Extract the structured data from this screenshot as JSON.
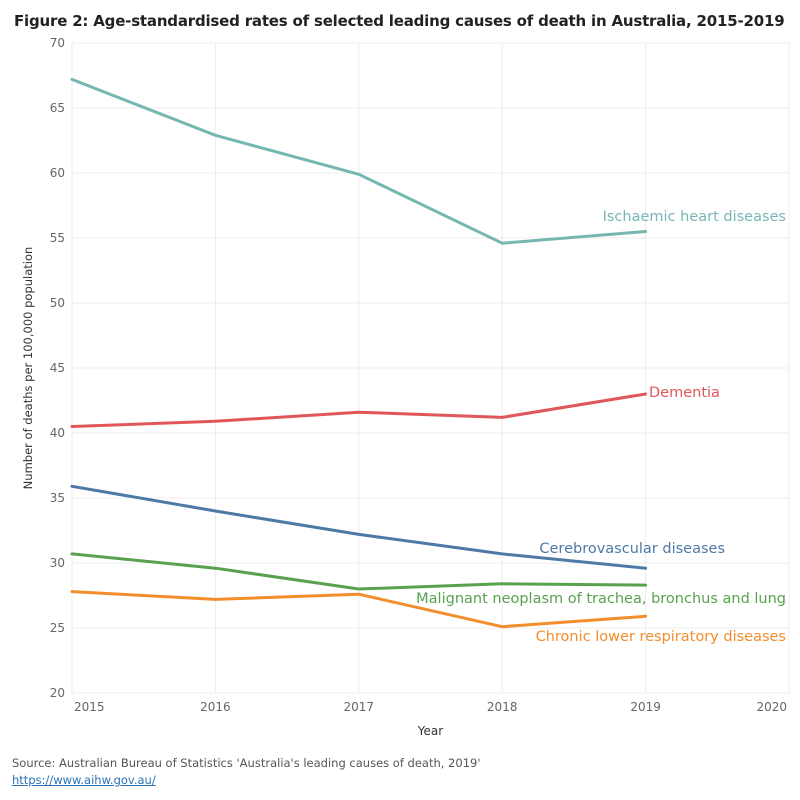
{
  "header": {
    "title": "Figure 2: Age-standardised rates of selected leading causes of death in Australia, 2015-2019"
  },
  "footer": {
    "source": "Source: Australian Bureau of Statistics 'Australia's leading causes of death, 2019'",
    "link": "https://www.aihw.gov.au/"
  },
  "chart_data": {
    "type": "line",
    "title": "Figure 2: Age-standardised rates of selected leading causes of death in Australia, 2015-2019",
    "xlabel": "Year",
    "ylabel": "Number of deaths per 100,000 population",
    "x_ticks": [
      "2015",
      "2016",
      "2017",
      "2018",
      "2019",
      "2020"
    ],
    "y_ticks": [
      "20",
      "25",
      "30",
      "35",
      "40",
      "45",
      "50",
      "55",
      "60",
      "65",
      "70"
    ],
    "xlim": [
      2015,
      2020
    ],
    "ylim": [
      20,
      70
    ],
    "grid": true,
    "legend": "labels at line ends",
    "x": [
      2015,
      2016,
      2017,
      2018,
      2019
    ],
    "series": [
      {
        "name": "Ischaemic heart diseases",
        "color": "#76b7b2",
        "values": [
          67.2,
          62.9,
          59.9,
          54.6,
          55.5
        ]
      },
      {
        "name": "Dementia",
        "color": "#e15759",
        "values": [
          40.5,
          40.9,
          41.6,
          41.2,
          43.0
        ]
      },
      {
        "name": "Cerebrovascular diseases",
        "color": "#4e79a7",
        "values": [
          35.9,
          34.0,
          32.2,
          30.7,
          29.6
        ]
      },
      {
        "name": "Malignant neoplasm of trachea, bronchus and lung",
        "color": "#59a14f",
        "values": [
          30.7,
          29.6,
          28.0,
          28.4,
          28.3
        ]
      },
      {
        "name": "Chronic lower respiratory diseases",
        "color": "#f28e2b",
        "values": [
          27.8,
          27.2,
          27.6,
          25.1,
          25.9
        ]
      }
    ]
  }
}
